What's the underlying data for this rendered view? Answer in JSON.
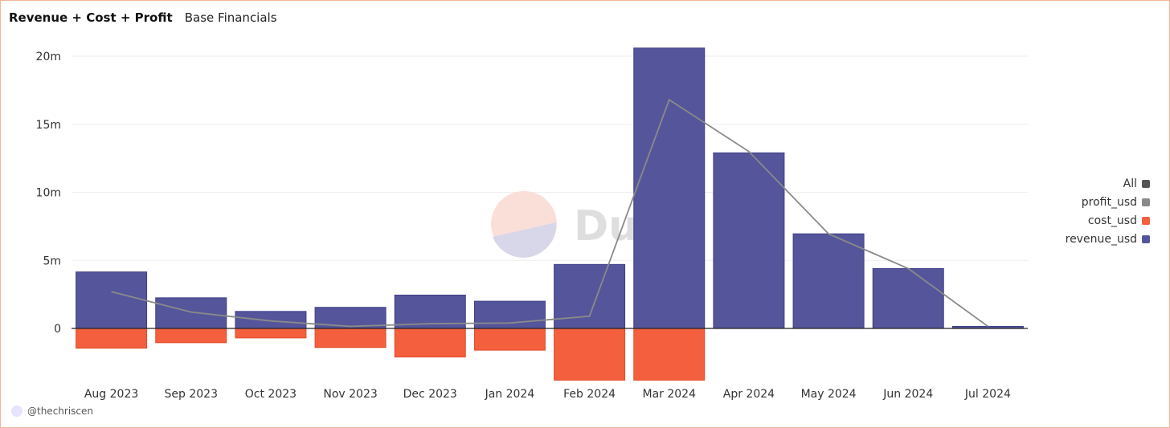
{
  "header": {
    "title": "Revenue + Cost + Profit",
    "subtitle": "Base Financials"
  },
  "watermark": {
    "text": "Dune"
  },
  "legend": {
    "items": [
      {
        "label": "All",
        "color": "#555555"
      },
      {
        "label": "profit_usd",
        "color": "#8a8a8a"
      },
      {
        "label": "cost_usd",
        "color": "#f45f3d"
      },
      {
        "label": "revenue_usd",
        "color": "#55559b"
      }
    ]
  },
  "footer": {
    "author": "@thechriscen"
  },
  "chart_data": {
    "type": "bar",
    "categories": [
      "Aug 2023",
      "Sep 2023",
      "Oct 2023",
      "Nov 2023",
      "Dec 2023",
      "Jan 2024",
      "Feb 2024",
      "Mar 2024",
      "Apr 2024",
      "May 2024",
      "Jun 2024",
      "Jul 2024"
    ],
    "series": [
      {
        "name": "revenue_usd",
        "kind": "bar",
        "color": "#55559b",
        "values": [
          4.15,
          2.25,
          1.25,
          1.55,
          2.45,
          2.0,
          4.7,
          20.6,
          12.9,
          6.95,
          4.4,
          0.15
        ]
      },
      {
        "name": "cost_usd",
        "kind": "bar",
        "color": "#f45f3d",
        "values": [
          -1.45,
          -1.05,
          -0.7,
          -1.4,
          -2.1,
          -1.6,
          -3.8,
          -3.8,
          0,
          0,
          0,
          0
        ]
      },
      {
        "name": "profit_usd",
        "kind": "line",
        "color": "#8a8a8a",
        "values": [
          2.7,
          1.2,
          0.55,
          0.15,
          0.35,
          0.4,
          0.9,
          16.8,
          13.0,
          6.95,
          4.4,
          0.15
        ]
      }
    ],
    "yticks": [
      0,
      5,
      10,
      15,
      20
    ],
    "ytick_labels": [
      "0",
      "5m",
      "10m",
      "15m",
      "20m"
    ],
    "ylim": [
      -4.2,
      21.3
    ],
    "grid": true,
    "legend_position": "right"
  }
}
